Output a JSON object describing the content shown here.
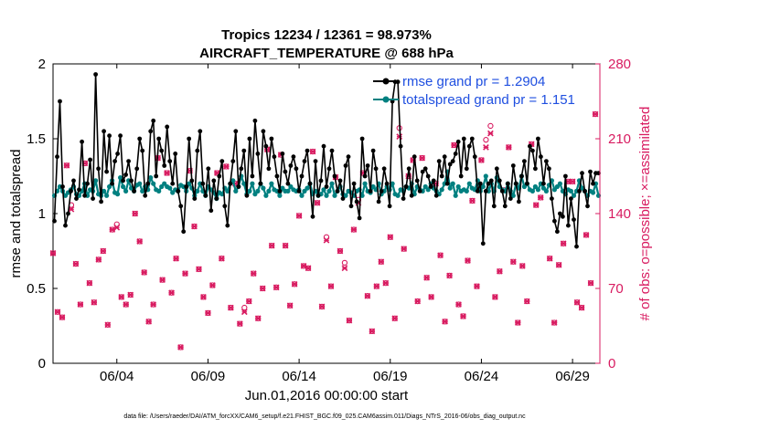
{
  "chart_data": {
    "type": "line",
    "title": "Tropics 12234 / 12361 = 98.973%",
    "subtitle": "AIRCRAFT_TEMPERATURE @ 688 hPa",
    "xlabel": "Jun.01,2016 00:00:00 start",
    "ylabel": "rmse and totalspread",
    "ylabel_right": "# of obs: o=possible; ×=assimilated",
    "footer": "data file: /Users/raeder/DAI/ATM_forcXX/CAM6_setup/f.e21.FHIST_BGC.f09_025.CAM6assim.011/Diags_NTrS_2016-06/obs_diag_output.nc",
    "xlim": [
      0.5,
      30.5
    ],
    "ylim": [
      0,
      2
    ],
    "ylim_right": [
      0,
      280
    ],
    "yticks": [
      "0",
      "0.5",
      "1",
      "1.5",
      "2"
    ],
    "yticks_right": [
      "0",
      "70",
      "140",
      "210",
      "280"
    ],
    "xticks": [
      {
        "day": 4,
        "label": "06/04"
      },
      {
        "day": 9,
        "label": "06/09"
      },
      {
        "day": 14,
        "label": "06/14"
      },
      {
        "day": 19,
        "label": "06/19"
      },
      {
        "day": 24,
        "label": "06/24"
      },
      {
        "day": 29,
        "label": "06/29"
      }
    ],
    "colors": {
      "rmse": "#000000",
      "spread": "#008080",
      "obs": "#d81b60",
      "legend_text": "#1f4fe0"
    },
    "legend": {
      "placement": "top-right",
      "rmse_label": "rmse grand pr = 1.2904",
      "spread_label": "totalspread grand pr = 1.151"
    },
    "series": [
      {
        "name": "rmse",
        "values": [
          0.95,
          1.38,
          1.75,
          1.18,
          0.92,
          1.0,
          1.15,
          1.22,
          1.1,
          1.16,
          1.48,
          1.12,
          1.2,
          1.36,
          1.1,
          1.93,
          1.3,
          1.08,
          1.55,
          1.28,
          1.52,
          1.2,
          1.35,
          1.4,
          1.52,
          1.22,
          1.26,
          1.35,
          1.22,
          1.15,
          1.3,
          1.5,
          1.42,
          1.12,
          1.2,
          1.55,
          1.62,
          1.25,
          1.5,
          1.42,
          1.32,
          1.58,
          1.35,
          1.2,
          1.4,
          1.15,
          1.05,
          0.88,
          1.18,
          1.5,
          1.22,
          1.1,
          1.42,
          1.55,
          1.2,
          1.12,
          1.3,
          1.02,
          1.22,
          1.1,
          1.25,
          1.35,
          1.05,
          0.92,
          1.2,
          1.35,
          1.55,
          1.18,
          1.3,
          1.42,
          1.12,
          1.5,
          1.25,
          1.62,
          1.4,
          1.2,
          1.55,
          1.45,
          1.3,
          1.5,
          1.38,
          1.25,
          1.15,
          1.4,
          1.28,
          1.2,
          1.32,
          1.38,
          1.3,
          1.15,
          1.25,
          1.35,
          1.42,
          1.2,
          0.98,
          1.35,
          1.12,
          1.22,
          1.45,
          1.18,
          1.3,
          1.42,
          1.25,
          1.15,
          1.22,
          1.1,
          1.32,
          1.38,
          1.05,
          1.2,
          1.08,
          0.97,
          1.5,
          1.25,
          1.32,
          1.15,
          1.42,
          1.3,
          1.08,
          1.15,
          1.3,
          1.2,
          1.05,
          1.75,
          1.88,
          1.88,
          1.45,
          1.1,
          1.18,
          1.3,
          1.12,
          1.38,
          1.22,
          1.15,
          1.28,
          1.3,
          1.25,
          1.18,
          1.22,
          1.12,
          1.35,
          1.25,
          1.38,
          1.2,
          1.33,
          1.35,
          1.4,
          1.48,
          1.25,
          1.5,
          1.3,
          1.45,
          1.5,
          1.38,
          1.15,
          1.2,
          0.8,
          1.15,
          1.2,
          1.22,
          1.05,
          1.3,
          1.22,
          1.15,
          1.05,
          1.2,
          1.1,
          1.32,
          1.2,
          1.08,
          1.25,
          1.35,
          1.2,
          1.45,
          1.42,
          1.3,
          1.5,
          1.38,
          1.2,
          1.35,
          1.3,
          1.1,
          0.95,
          0.88,
          1.0,
          0.98,
          1.25,
          0.92,
          1.1,
          0.96,
          0.78,
          1.15,
          1.27,
          1.15,
          1.05,
          1.28,
          1.2,
          1.27,
          1.27
        ]
      },
      {
        "name": "totalspread",
        "values": [
          1.12,
          1.15,
          1.18,
          1.15,
          1.12,
          1.14,
          1.16,
          1.18,
          1.13,
          1.12,
          1.15,
          1.2,
          1.12,
          1.16,
          1.15,
          1.22,
          1.13,
          1.12,
          1.15,
          1.12,
          1.18,
          1.22,
          1.14,
          1.13,
          1.24,
          1.18,
          1.15,
          1.22,
          1.17,
          1.15,
          1.19,
          1.2,
          1.15,
          1.18,
          1.16,
          1.24,
          1.2,
          1.16,
          1.15,
          1.18,
          1.2,
          1.18,
          1.17,
          1.14,
          1.16,
          1.15,
          1.19,
          1.18,
          1.15,
          1.2,
          1.17,
          1.12,
          1.15,
          1.2,
          1.15,
          1.12,
          1.18,
          1.16,
          1.14,
          1.1,
          1.14,
          1.13,
          1.17,
          1.15,
          1.2,
          1.22,
          1.15,
          1.18,
          1.25,
          1.2,
          1.13,
          1.15,
          1.2,
          1.13,
          1.15,
          1.2,
          1.17,
          1.12,
          1.15,
          1.2,
          1.16,
          1.15,
          1.12,
          1.17,
          1.15,
          1.15,
          1.18,
          1.16,
          1.15,
          1.16,
          1.12,
          1.15,
          1.17,
          1.2,
          1.13,
          1.15,
          1.12,
          1.13,
          1.16,
          1.12,
          1.15,
          1.2,
          1.12,
          1.15,
          1.18,
          1.13,
          1.12,
          1.15,
          1.14,
          1.12,
          1.15,
          1.16,
          1.12,
          1.2,
          1.15,
          1.14,
          1.18,
          1.16,
          1.2,
          1.13,
          1.15,
          1.18,
          1.16,
          1.2,
          1.13,
          1.12,
          1.16,
          1.15,
          1.18,
          1.17,
          1.2,
          1.13,
          1.18,
          1.16,
          1.15,
          1.18,
          1.16,
          1.2,
          1.17,
          1.15,
          1.13,
          1.16,
          1.2,
          1.28,
          1.17,
          1.2,
          1.12,
          1.18,
          1.15,
          1.16,
          1.15,
          1.2,
          1.17,
          1.16,
          1.22,
          1.15,
          1.18,
          1.25,
          1.15,
          1.2,
          1.15,
          1.24,
          1.18,
          1.16,
          1.15,
          1.2,
          1.15,
          1.12,
          1.2,
          1.17,
          1.25,
          1.18,
          1.2,
          1.16,
          1.15,
          1.18,
          1.16,
          1.2,
          1.17,
          1.15,
          1.19,
          1.22,
          1.16,
          1.18,
          1.2,
          1.15,
          1.13,
          1.16,
          1.15,
          1.12,
          1.15,
          1.22,
          1.17,
          1.15,
          1.12,
          1.15,
          1.14,
          1.2,
          1.12
        ]
      }
    ],
    "obs_possible": [
      [
        0.5,
        103
      ],
      [
        0.75,
        48
      ],
      [
        1.0,
        43
      ],
      [
        1.25,
        185
      ],
      [
        1.5,
        148
      ],
      [
        1.75,
        93
      ],
      [
        2.0,
        55
      ],
      [
        2.25,
        187
      ],
      [
        2.5,
        75
      ],
      [
        2.75,
        57
      ],
      [
        3.0,
        97
      ],
      [
        3.25,
        105
      ],
      [
        3.5,
        36
      ],
      [
        3.75,
        125
      ],
      [
        4.0,
        130
      ],
      [
        4.25,
        62
      ],
      [
        4.5,
        55
      ],
      [
        4.75,
        64
      ],
      [
        5.0,
        140
      ],
      [
        5.25,
        114
      ],
      [
        5.5,
        85
      ],
      [
        5.75,
        39
      ],
      [
        6.0,
        55
      ],
      [
        6.25,
        192
      ],
      [
        6.5,
        78
      ],
      [
        6.75,
        178
      ],
      [
        7.0,
        66
      ],
      [
        7.25,
        98
      ],
      [
        7.5,
        15
      ],
      [
        7.75,
        84
      ],
      [
        8.0,
        180
      ],
      [
        8.25,
        128
      ],
      [
        8.5,
        88
      ],
      [
        8.75,
        62
      ],
      [
        9.0,
        47
      ],
      [
        9.25,
        73
      ],
      [
        9.5,
        178
      ],
      [
        9.75,
        98
      ],
      [
        10.0,
        184
      ],
      [
        10.25,
        52
      ],
      [
        10.5,
        168
      ],
      [
        10.75,
        37
      ],
      [
        11.0,
        52
      ],
      [
        11.25,
        58
      ],
      [
        11.5,
        84
      ],
      [
        11.75,
        42
      ],
      [
        12.0,
        70
      ],
      [
        12.25,
        200
      ],
      [
        12.5,
        110
      ],
      [
        12.75,
        71
      ],
      [
        13.0,
        195
      ],
      [
        13.25,
        110
      ],
      [
        13.5,
        54
      ],
      [
        13.75,
        74
      ],
      [
        14.0,
        138
      ],
      [
        14.25,
        91
      ],
      [
        14.5,
        89
      ],
      [
        14.75,
        198
      ],
      [
        15.0,
        150
      ],
      [
        15.25,
        53
      ],
      [
        15.5,
        118
      ],
      [
        15.75,
        72
      ],
      [
        16.0,
        174
      ],
      [
        16.25,
        105
      ],
      [
        16.5,
        94
      ],
      [
        16.75,
        40
      ],
      [
        17.0,
        125
      ],
      [
        17.25,
        153
      ],
      [
        17.5,
        178
      ],
      [
        17.75,
        63
      ],
      [
        18.0,
        30
      ],
      [
        18.25,
        72
      ],
      [
        18.5,
        95
      ],
      [
        18.75,
        75
      ],
      [
        19.0,
        118
      ],
      [
        19.25,
        42
      ],
      [
        19.5,
        220
      ],
      [
        19.75,
        107
      ],
      [
        20.0,
        175
      ],
      [
        20.25,
        190
      ],
      [
        20.5,
        58
      ],
      [
        20.75,
        192
      ],
      [
        21.0,
        80
      ],
      [
        21.25,
        62
      ],
      [
        21.5,
        168
      ],
      [
        21.75,
        101
      ],
      [
        22.0,
        39
      ],
      [
        22.25,
        82
      ],
      [
        22.5,
        204
      ],
      [
        22.75,
        55
      ],
      [
        23.0,
        44
      ],
      [
        23.25,
        96
      ],
      [
        23.5,
        152
      ],
      [
        23.75,
        72
      ],
      [
        24.0,
        190
      ],
      [
        24.25,
        209
      ],
      [
        24.5,
        222
      ],
      [
        24.75,
        62
      ],
      [
        25.0,
        86
      ],
      [
        25.25,
        162
      ],
      [
        25.5,
        202
      ],
      [
        25.75,
        95
      ],
      [
        26.0,
        38
      ],
      [
        26.25,
        91
      ],
      [
        26.5,
        58
      ],
      [
        26.75,
        205
      ],
      [
        27.0,
        148
      ],
      [
        27.25,
        155
      ],
      [
        27.75,
        98
      ],
      [
        28.0,
        38
      ],
      [
        28.25,
        92
      ],
      [
        28.5,
        112
      ],
      [
        28.75,
        170
      ],
      [
        29.0,
        170
      ],
      [
        29.25,
        57
      ],
      [
        29.5,
        52
      ],
      [
        29.75,
        120
      ],
      [
        30.0,
        75
      ],
      [
        30.25,
        233
      ]
    ],
    "obs_assimilated": [
      [
        0.5,
        103
      ],
      [
        0.75,
        48
      ],
      [
        1.0,
        43
      ],
      [
        1.25,
        185
      ],
      [
        1.5,
        144
      ],
      [
        1.75,
        93
      ],
      [
        2.0,
        55
      ],
      [
        2.25,
        187
      ],
      [
        2.5,
        75
      ],
      [
        2.75,
        57
      ],
      [
        3.0,
        97
      ],
      [
        3.25,
        105
      ],
      [
        3.5,
        36
      ],
      [
        3.75,
        125
      ],
      [
        4.0,
        127
      ],
      [
        4.25,
        62
      ],
      [
        4.5,
        55
      ],
      [
        4.75,
        64
      ],
      [
        5.0,
        140
      ],
      [
        5.25,
        114
      ],
      [
        5.5,
        85
      ],
      [
        5.75,
        39
      ],
      [
        6.0,
        55
      ],
      [
        6.25,
        192
      ],
      [
        6.5,
        78
      ],
      [
        6.75,
        178
      ],
      [
        7.0,
        66
      ],
      [
        7.25,
        98
      ],
      [
        7.5,
        15
      ],
      [
        7.75,
        84
      ],
      [
        8.0,
        180
      ],
      [
        8.25,
        128
      ],
      [
        8.5,
        88
      ],
      [
        8.75,
        62
      ],
      [
        9.0,
        47
      ],
      [
        9.25,
        73
      ],
      [
        9.5,
        178
      ],
      [
        9.75,
        98
      ],
      [
        10.0,
        184
      ],
      [
        10.25,
        52
      ],
      [
        10.5,
        168
      ],
      [
        10.75,
        37
      ],
      [
        11.0,
        48
      ],
      [
        11.25,
        58
      ],
      [
        11.5,
        84
      ],
      [
        11.75,
        42
      ],
      [
        12.0,
        70
      ],
      [
        12.25,
        200
      ],
      [
        12.5,
        110
      ],
      [
        12.75,
        71
      ],
      [
        13.0,
        195
      ],
      [
        13.25,
        110
      ],
      [
        13.5,
        54
      ],
      [
        13.75,
        74
      ],
      [
        14.0,
        138
      ],
      [
        14.25,
        91
      ],
      [
        14.5,
        89
      ],
      [
        14.75,
        198
      ],
      [
        15.0,
        150
      ],
      [
        15.25,
        53
      ],
      [
        15.5,
        115
      ],
      [
        15.75,
        72
      ],
      [
        16.0,
        174
      ],
      [
        16.25,
        105
      ],
      [
        16.5,
        89
      ],
      [
        16.75,
        40
      ],
      [
        17.0,
        125
      ],
      [
        17.25,
        150
      ],
      [
        17.5,
        178
      ],
      [
        17.75,
        63
      ],
      [
        18.0,
        30
      ],
      [
        18.25,
        72
      ],
      [
        18.5,
        95
      ],
      [
        18.75,
        75
      ],
      [
        19.0,
        118
      ],
      [
        19.25,
        42
      ],
      [
        19.5,
        212
      ],
      [
        19.75,
        107
      ],
      [
        20.0,
        175
      ],
      [
        20.25,
        190
      ],
      [
        20.5,
        58
      ],
      [
        20.75,
        192
      ],
      [
        21.0,
        80
      ],
      [
        21.25,
        62
      ],
      [
        21.5,
        168
      ],
      [
        21.75,
        101
      ],
      [
        22.0,
        39
      ],
      [
        22.25,
        82
      ],
      [
        22.5,
        204
      ],
      [
        22.75,
        55
      ],
      [
        23.0,
        44
      ],
      [
        23.25,
        96
      ],
      [
        23.5,
        152
      ],
      [
        23.75,
        72
      ],
      [
        24.0,
        190
      ],
      [
        24.25,
        202
      ],
      [
        24.5,
        215
      ],
      [
        24.75,
        62
      ],
      [
        25.0,
        86
      ],
      [
        25.25,
        162
      ],
      [
        25.5,
        202
      ],
      [
        25.75,
        95
      ],
      [
        26.0,
        38
      ],
      [
        26.25,
        91
      ],
      [
        26.5,
        58
      ],
      [
        26.75,
        205
      ],
      [
        27.0,
        148
      ],
      [
        27.25,
        155
      ],
      [
        27.75,
        98
      ],
      [
        28.0,
        38
      ],
      [
        28.25,
        92
      ],
      [
        28.5,
        112
      ],
      [
        28.75,
        170
      ],
      [
        29.0,
        170
      ],
      [
        29.25,
        57
      ],
      [
        29.5,
        52
      ],
      [
        29.75,
        120
      ],
      [
        30.0,
        75
      ],
      [
        30.25,
        233
      ]
    ]
  }
}
